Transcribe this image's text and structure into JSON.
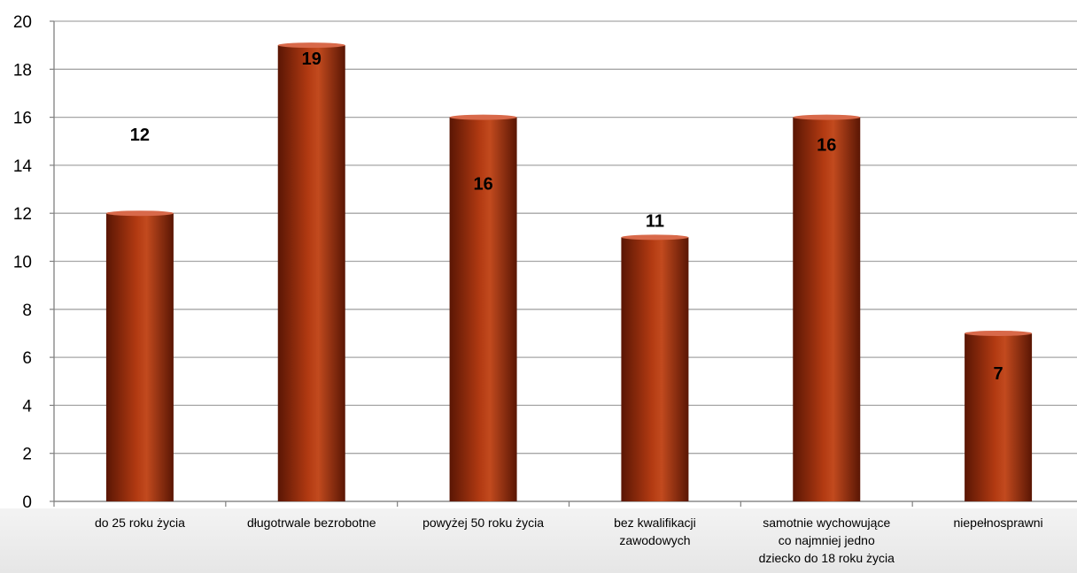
{
  "chart_data": {
    "type": "bar",
    "categories": [
      [
        "do 25 roku życia"
      ],
      [
        "długotrwale bezrobotne"
      ],
      [
        "powyżej 50 roku życia"
      ],
      [
        "bez kwalifikacji",
        "zawodowych"
      ],
      [
        "samotnie wychowujące",
        "co najmniej jedno",
        "dziecko do 18 roku życia"
      ],
      [
        "niepełnosprawni"
      ]
    ],
    "values": [
      12,
      19,
      16,
      11,
      16,
      7
    ],
    "data_labels": [
      "12",
      "19",
      "16",
      "11",
      "16",
      "7"
    ],
    "yticks": [
      "0",
      "2",
      "4",
      "6",
      "8",
      "10",
      "12",
      "14",
      "16",
      "18",
      "20"
    ],
    "ylim": [
      0,
      20
    ],
    "grid": true,
    "title": "",
    "xlabel": "",
    "ylabel": "",
    "colors": {
      "bar_dark": "#5a1604",
      "bar_mid": "#a8320e",
      "bar_light": "#c24a1e",
      "bar_top": "#d8694a",
      "grid": "#a6a6a6",
      "axis": "#808080",
      "floor": "#ebebeb"
    }
  }
}
